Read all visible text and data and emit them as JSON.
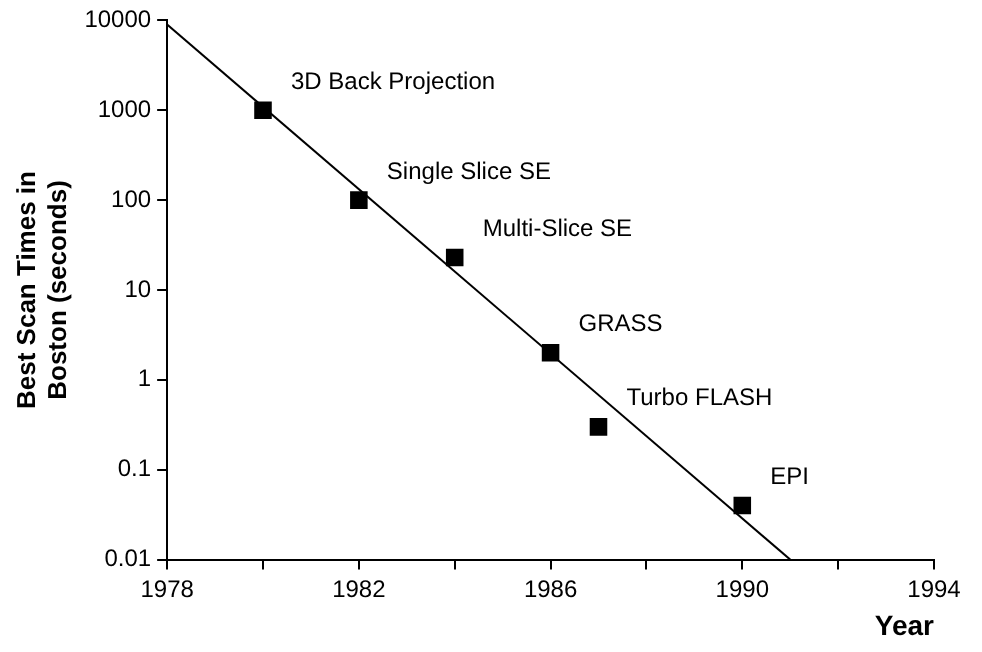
{
  "chart_data": {
    "type": "scatter",
    "xlabel": "Year",
    "ylabel": "Best Scan Times in Boston (seconds)",
    "log": "y",
    "grid": false,
    "legend": false,
    "marker": "square",
    "xlim": [
      1978,
      1994
    ],
    "xticks": [
      1978,
      {
        "value": 1980,
        "label": null
      },
      1982,
      {
        "value": 1984,
        "label": null
      },
      1986,
      {
        "value": 1988,
        "label": null
      },
      1990,
      {
        "value": 1992,
        "label": null
      },
      1994
    ],
    "ylim": [
      0.01,
      10000
    ],
    "yticks": [
      0.01,
      0.1,
      1,
      10,
      100,
      1000,
      10000
    ],
    "series": [
      {
        "type": "scatter",
        "color": "#000000",
        "x": [
          1980,
          1982,
          1984,
          1986,
          1987,
          1990
        ],
        "values": [
          1000,
          100,
          23,
          2,
          0.3,
          0.04
        ]
      },
      {
        "type": "line",
        "marker": "none",
        "color": "#000000",
        "x": [
          1978,
          1991
        ],
        "values": [
          9000,
          0.01
        ]
      }
    ],
    "annotations": [
      {
        "text": "3D Back Projection",
        "x": 1980,
        "y": 1000
      },
      {
        "text": "Single Slice SE",
        "x": 1982,
        "y": 100
      },
      {
        "text": "Multi-Slice SE",
        "x": 1984,
        "y": 23
      },
      {
        "text": "GRASS",
        "x": 1986,
        "y": 2
      },
      {
        "text": "Turbo FLASH",
        "x": 1987,
        "y": 0.3
      },
      {
        "text": "EPI",
        "x": 1990,
        "y": 0.04
      }
    ]
  }
}
